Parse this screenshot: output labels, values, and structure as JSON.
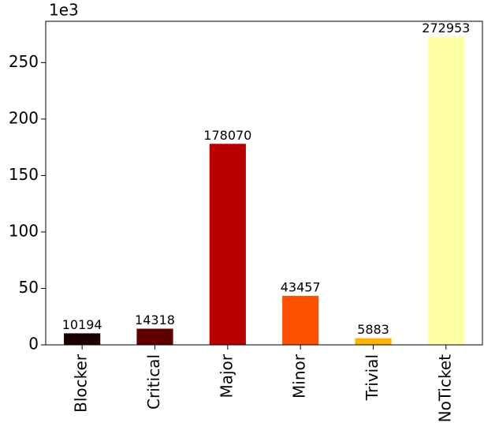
{
  "chart_data": {
    "type": "bar",
    "axis_offset_label": "1e3",
    "categories": [
      "Blocker",
      "Critical",
      "Major",
      "Minor",
      "Trivial",
      "NoTicket"
    ],
    "values": [
      10194,
      14318,
      178070,
      43457,
      5883,
      272953
    ],
    "colors": [
      "#1c0000",
      "#5e0000",
      "#b90000",
      "#ff5200",
      "#ffb300",
      "#ffffa6"
    ],
    "ylim": [
      0,
      286600
    ],
    "yticks": [
      {
        "value": 0,
        "label": "0"
      },
      {
        "value": 50000,
        "label": "50"
      },
      {
        "value": 100000,
        "label": "100"
      },
      {
        "value": 150000,
        "label": "150"
      },
      {
        "value": 200000,
        "label": "200"
      },
      {
        "value": 250000,
        "label": "250"
      }
    ],
    "grid": false
  }
}
